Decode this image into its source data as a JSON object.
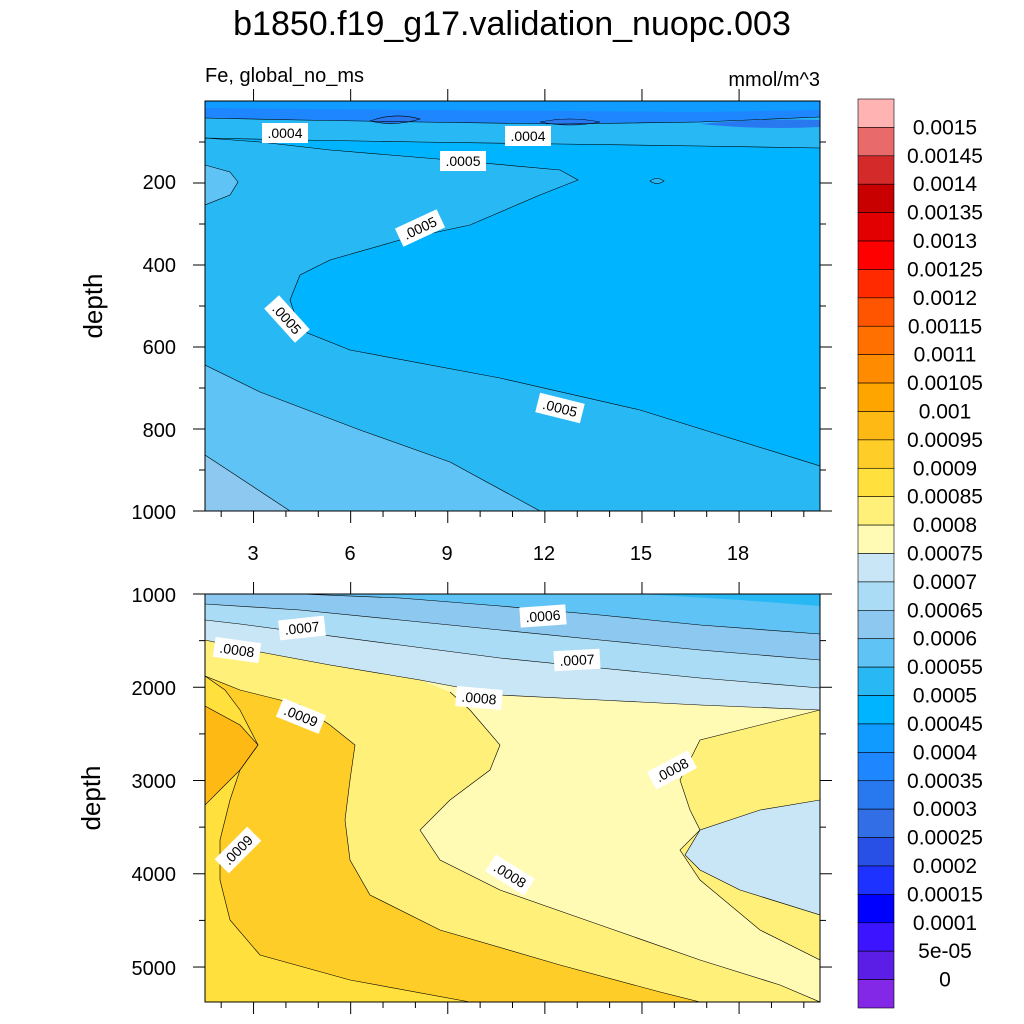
{
  "title": "b1850.f19_g17.validation_nuopc.003",
  "variable_label": "Fe, global_no_ms",
  "units_label": "mmol/m^3",
  "chart_data": [
    {
      "type": "contour",
      "panel": "upper",
      "ylabel": "depth",
      "x_ticks": [
        "3",
        "6",
        "9",
        "12",
        "15",
        "18"
      ],
      "y_ticks": [
        "200",
        "400",
        "600",
        "800",
        "1000"
      ],
      "xlim": [
        1.5,
        20.5
      ],
      "ylim": [
        1000,
        0
      ],
      "contour_labels": [
        ".0004",
        ".0004",
        ".0005",
        ".0005",
        ".0005",
        ".0005"
      ]
    },
    {
      "type": "contour",
      "panel": "lower",
      "ylabel": "depth",
      "x_ticks": [],
      "y_ticks": [
        "1000",
        "2000",
        "3000",
        "4000",
        "5000"
      ],
      "xlim": [
        1.5,
        20.5
      ],
      "ylim": [
        5375,
        1000
      ],
      "contour_labels": [
        ".0006",
        ".0007",
        ".0007",
        ".0008",
        ".0008",
        ".0008",
        ".0008",
        ".0009",
        ".0009"
      ]
    }
  ],
  "colorbar": {
    "labels": [
      "0.0015",
      "0.00145",
      "0.0014",
      "0.00135",
      "0.0013",
      "0.00125",
      "0.0012",
      "0.00115",
      "0.0011",
      "0.00105",
      "0.001",
      "0.00095",
      "0.0009",
      "0.00085",
      "0.0008",
      "0.00075",
      "0.0007",
      "0.00065",
      "0.0006",
      "0.00055",
      "0.0005",
      "0.00045",
      "0.0004",
      "0.00035",
      "0.0003",
      "0.00025",
      "0.0002",
      "0.00015",
      "0.0001",
      "5e-05",
      "0"
    ],
    "colors": [
      "#ffb3b3",
      "#e86a6a",
      "#d42a2a",
      "#c80000",
      "#e30000",
      "#ff0000",
      "#ff2a00",
      "#ff5500",
      "#ff7000",
      "#ff8c00",
      "#ffa500",
      "#ffb914",
      "#ffcd28",
      "#ffe03c",
      "#fff07a",
      "#fffab4",
      "#c8e6f5",
      "#aadcf5",
      "#8cc8f0",
      "#5fc3f5",
      "#28b9f5",
      "#00b4ff",
      "#0f9bff",
      "#1e87ff",
      "#2878f0",
      "#326ee6",
      "#2850e6",
      "#1e32ff",
      "#0000ff",
      "#3c14ff",
      "#5a1ee6",
      "#8228e6"
    ]
  }
}
